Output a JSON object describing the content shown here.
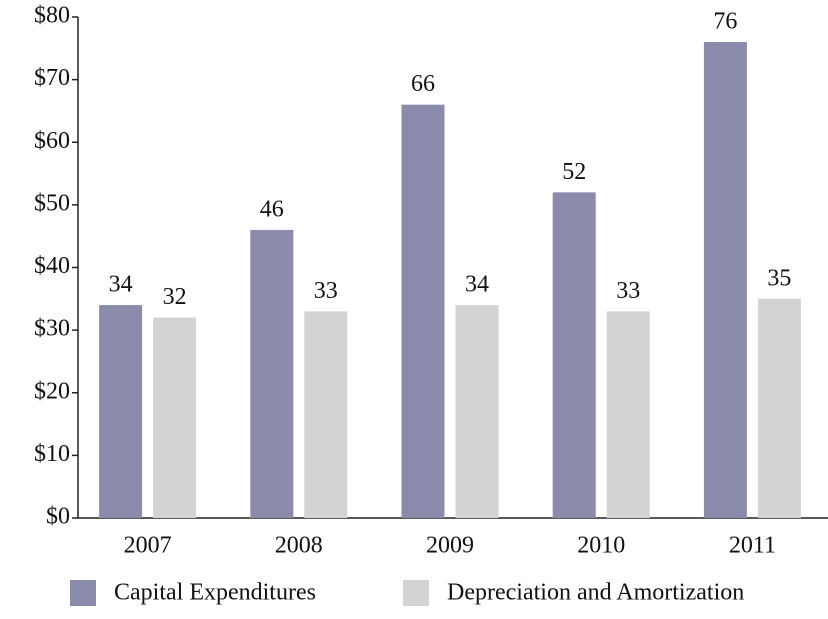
{
  "chart_data": {
    "type": "bar",
    "categories": [
      "2007",
      "2008",
      "2009",
      "2010",
      "2011"
    ],
    "series": [
      {
        "name": "Capital Expenditures",
        "color": "#8a8bab",
        "values": [
          34,
          46,
          66,
          52,
          76
        ]
      },
      {
        "name": "Depreciation and Amortization",
        "color": "#d3d3d3",
        "values": [
          32,
          33,
          34,
          33,
          35
        ]
      }
    ],
    "ylim": [
      0,
      80
    ],
    "yticks": [
      {
        "value": 0,
        "label": "$0"
      },
      {
        "value": 10,
        "label": "$10"
      },
      {
        "value": 20,
        "label": "$20"
      },
      {
        "value": 30,
        "label": "$30"
      },
      {
        "value": 40,
        "label": "$40"
      },
      {
        "value": 50,
        "label": "$50"
      },
      {
        "value": 60,
        "label": "$60"
      },
      {
        "value": 70,
        "label": "$70"
      },
      {
        "value": 80,
        "label": "$80"
      }
    ],
    "grid": false,
    "legend": "bottom"
  }
}
